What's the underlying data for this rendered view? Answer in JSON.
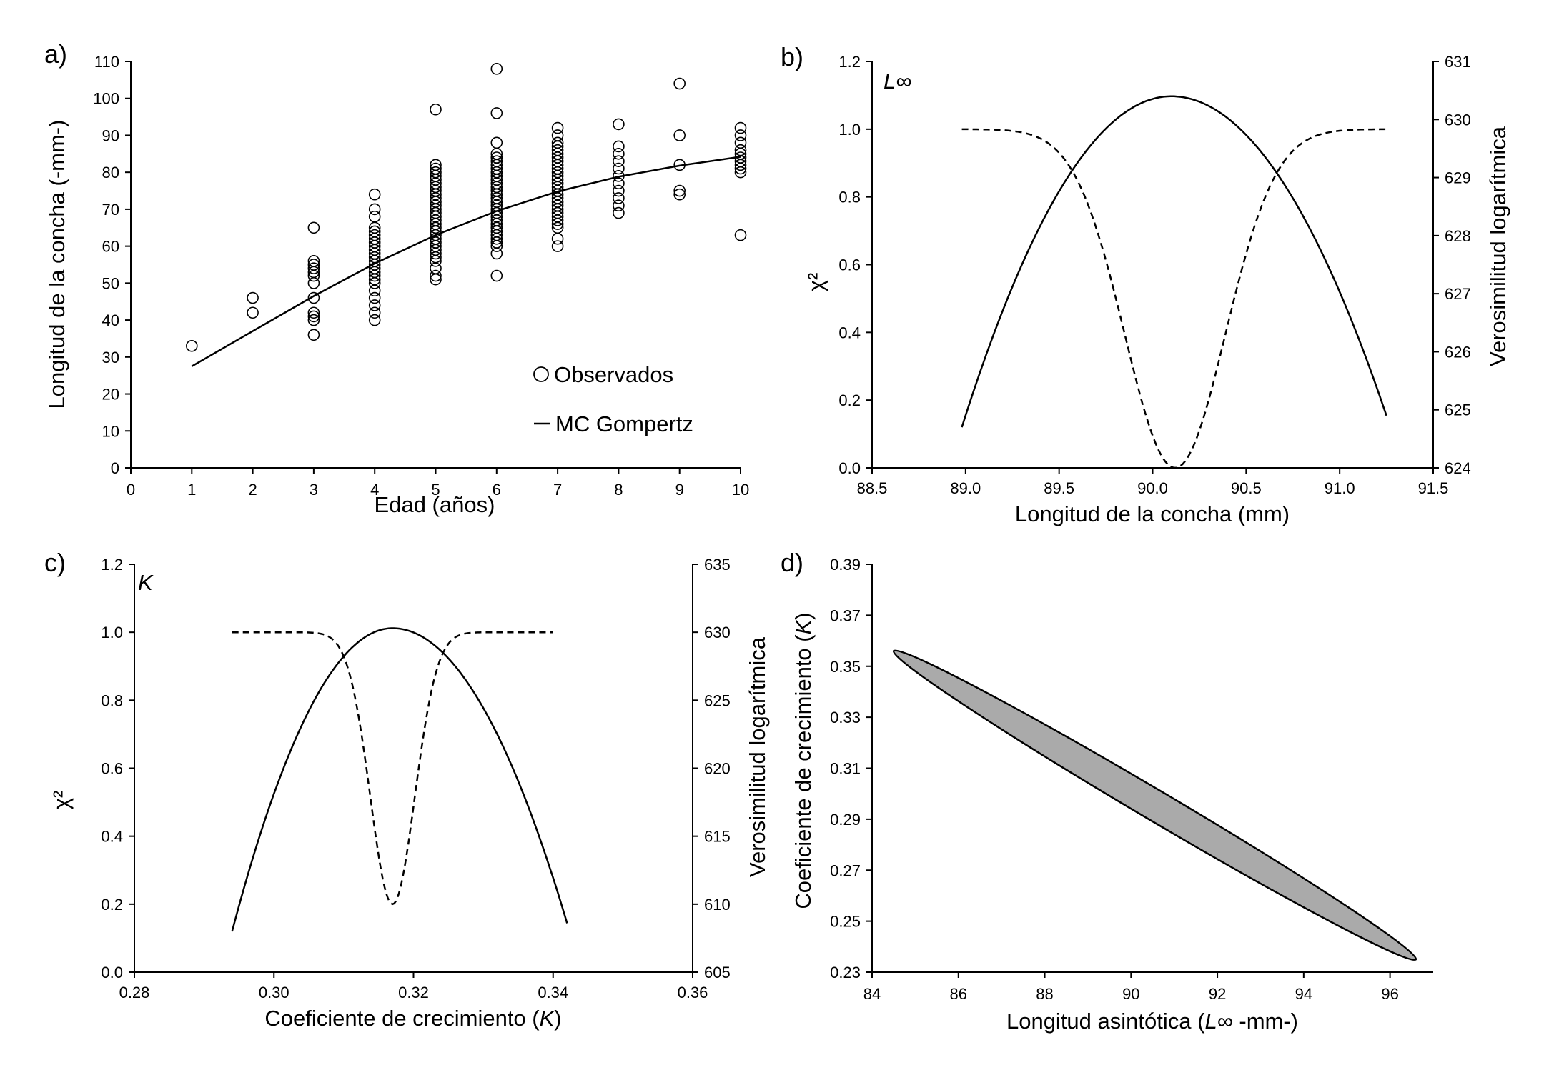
{
  "chart_data": [
    {
      "id": "a",
      "type": "scatter",
      "panel_label": "a)",
      "xlabel": "Edad (años)",
      "ylabel": "Longitud de la concha (-mm-)",
      "xlim": [
        0,
        10
      ],
      "ylim": [
        0,
        110
      ],
      "xticks": [
        0,
        1,
        2,
        3,
        4,
        5,
        6,
        7,
        8,
        9,
        10
      ],
      "yticks": [
        0,
        10,
        20,
        30,
        40,
        50,
        60,
        70,
        80,
        90,
        100,
        110
      ],
      "legend": [
        {
          "name": "Observados",
          "marker": "circle"
        },
        {
          "name": "MC Gompertz",
          "marker": "line"
        }
      ],
      "series": [
        {
          "name": "Observados",
          "points": [
            [
              1,
              33
            ],
            [
              2,
              42
            ],
            [
              2,
              46
            ],
            [
              3,
              36
            ],
            [
              3,
              40
            ],
            [
              3,
              41
            ],
            [
              3,
              42
            ],
            [
              3,
              46
            ],
            [
              3,
              50
            ],
            [
              3,
              52
            ],
            [
              3,
              53
            ],
            [
              3,
              54
            ],
            [
              3,
              55
            ],
            [
              3,
              56
            ],
            [
              3,
              65
            ],
            [
              4,
              40
            ],
            [
              4,
              42
            ],
            [
              4,
              44
            ],
            [
              4,
              46
            ],
            [
              4,
              48
            ],
            [
              4,
              50
            ],
            [
              4,
              51
            ],
            [
              4,
              52
            ],
            [
              4,
              53
            ],
            [
              4,
              54
            ],
            [
              4,
              55
            ],
            [
              4,
              56
            ],
            [
              4,
              57
            ],
            [
              4,
              58
            ],
            [
              4,
              59
            ],
            [
              4,
              60
            ],
            [
              4,
              61
            ],
            [
              4,
              62
            ],
            [
              4,
              63
            ],
            [
              4,
              64
            ],
            [
              4,
              65
            ],
            [
              4,
              68
            ],
            [
              4,
              70
            ],
            [
              4,
              74
            ],
            [
              5,
              51
            ],
            [
              5,
              52
            ],
            [
              5,
              54
            ],
            [
              5,
              56
            ],
            [
              5,
              57
            ],
            [
              5,
              58
            ],
            [
              5,
              59
            ],
            [
              5,
              60
            ],
            [
              5,
              61
            ],
            [
              5,
              62
            ],
            [
              5,
              63
            ],
            [
              5,
              64
            ],
            [
              5,
              65
            ],
            [
              5,
              66
            ],
            [
              5,
              67
            ],
            [
              5,
              68
            ],
            [
              5,
              69
            ],
            [
              5,
              70
            ],
            [
              5,
              71
            ],
            [
              5,
              72
            ],
            [
              5,
              73
            ],
            [
              5,
              74
            ],
            [
              5,
              75
            ],
            [
              5,
              76
            ],
            [
              5,
              77
            ],
            [
              5,
              78
            ],
            [
              5,
              79
            ],
            [
              5,
              80
            ],
            [
              5,
              81
            ],
            [
              5,
              82
            ],
            [
              5,
              97
            ],
            [
              6,
              52
            ],
            [
              6,
              58
            ],
            [
              6,
              60
            ],
            [
              6,
              61
            ],
            [
              6,
              62
            ],
            [
              6,
              63
            ],
            [
              6,
              64
            ],
            [
              6,
              65
            ],
            [
              6,
              66
            ],
            [
              6,
              67
            ],
            [
              6,
              68
            ],
            [
              6,
              69
            ],
            [
              6,
              70
            ],
            [
              6,
              71
            ],
            [
              6,
              72
            ],
            [
              6,
              73
            ],
            [
              6,
              74
            ],
            [
              6,
              75
            ],
            [
              6,
              76
            ],
            [
              6,
              77
            ],
            [
              6,
              78
            ],
            [
              6,
              79
            ],
            [
              6,
              80
            ],
            [
              6,
              81
            ],
            [
              6,
              82
            ],
            [
              6,
              83
            ],
            [
              6,
              84
            ],
            [
              6,
              85
            ],
            [
              6,
              88
            ],
            [
              6,
              96
            ],
            [
              6,
              108
            ],
            [
              7,
              60
            ],
            [
              7,
              62
            ],
            [
              7,
              65
            ],
            [
              7,
              66
            ],
            [
              7,
              67
            ],
            [
              7,
              68
            ],
            [
              7,
              69
            ],
            [
              7,
              70
            ],
            [
              7,
              71
            ],
            [
              7,
              72
            ],
            [
              7,
              73
            ],
            [
              7,
              74
            ],
            [
              7,
              75
            ],
            [
              7,
              76
            ],
            [
              7,
              77
            ],
            [
              7,
              78
            ],
            [
              7,
              79
            ],
            [
              7,
              80
            ],
            [
              7,
              81
            ],
            [
              7,
              82
            ],
            [
              7,
              83
            ],
            [
              7,
              84
            ],
            [
              7,
              85
            ],
            [
              7,
              86
            ],
            [
              7,
              87
            ],
            [
              7,
              88
            ],
            [
              7,
              90
            ],
            [
              7,
              92
            ],
            [
              8,
              69
            ],
            [
              8,
              71
            ],
            [
              8,
              73
            ],
            [
              8,
              75
            ],
            [
              8,
              77
            ],
            [
              8,
              79
            ],
            [
              8,
              81
            ],
            [
              8,
              83
            ],
            [
              8,
              85
            ],
            [
              8,
              87
            ],
            [
              8,
              93
            ],
            [
              9,
              74
            ],
            [
              9,
              75
            ],
            [
              9,
              82
            ],
            [
              9,
              90
            ],
            [
              9,
              104
            ],
            [
              10,
              63
            ],
            [
              10,
              80
            ],
            [
              10,
              81
            ],
            [
              10,
              82
            ],
            [
              10,
              83
            ],
            [
              10,
              84
            ],
            [
              10,
              85
            ],
            [
              10,
              86
            ],
            [
              10,
              88
            ],
            [
              10,
              90
            ],
            [
              10,
              92
            ]
          ]
        },
        {
          "name": "MC Gompertz",
          "points": [
            [
              1,
              27.5
            ],
            [
              2,
              37.0
            ],
            [
              3,
              46.5
            ],
            [
              4,
              55.3
            ],
            [
              5,
              63.0
            ],
            [
              6,
              69.5
            ],
            [
              7,
              74.8
            ],
            [
              8,
              78.8
            ],
            [
              9,
              81.8
            ],
            [
              10,
              84.2
            ]
          ]
        }
      ]
    },
    {
      "id": "b",
      "type": "line",
      "panel_label": "b)",
      "annotation": "L∞",
      "xlabel": "Longitud de la concha (mm)",
      "ylabel": "χ²",
      "y2label": "Verosimilitud logarítmica",
      "xlim": [
        88.5,
        91.5
      ],
      "ylim": [
        0.0,
        1.2
      ],
      "y2lim": [
        624,
        631
      ],
      "xticks": [
        "88.5",
        "89.0",
        "89.5",
        "90.0",
        "90.5",
        "91.0",
        "91.5"
      ],
      "yticks": [
        "0.0",
        "0.2",
        "0.4",
        "0.6",
        "0.8",
        "1.0",
        "1.2"
      ],
      "y2ticks": [
        "624",
        "625",
        "626",
        "627",
        "628",
        "629",
        "630",
        "631"
      ],
      "series": [
        {
          "name": "Verosimilitud logarítmica",
          "axis": "right",
          "style": "solid",
          "x_range": [
            88.98,
            91.25
          ],
          "peak_x": 90.1,
          "peak_y": 630.4,
          "end_left": 624.7,
          "end_right": 624.9
        },
        {
          "name": "χ²",
          "axis": "left",
          "style": "dashed",
          "x_range": [
            88.98,
            91.25
          ],
          "center_x": 90.12,
          "min_y": 0.0,
          "plateau_y": 1.0,
          "width": 0.38
        }
      ]
    },
    {
      "id": "c",
      "type": "line",
      "panel_label": "c)",
      "annotation": "K",
      "xlabel_prefix": "Coeficiente de crecimiento (",
      "xlabel_var": "K",
      "xlabel_suffix": ")",
      "ylabel": "χ²",
      "y2label": "Verosimilitud logarítmica",
      "xlim": [
        0.28,
        0.36
      ],
      "ylim": [
        0.0,
        1.2
      ],
      "y2lim": [
        605,
        635
      ],
      "xticks": [
        "0.28",
        "0.30",
        "0.32",
        "0.34",
        "0.36"
      ],
      "yticks": [
        "0.0",
        "0.2",
        "0.4",
        "0.6",
        "0.8",
        "1.0",
        "1.2"
      ],
      "y2ticks": [
        "605",
        "610",
        "615",
        "620",
        "625",
        "630",
        "635"
      ],
      "series": [
        {
          "name": "Verosimilitud logarítmica",
          "axis": "right",
          "style": "solid",
          "x_range": [
            0.294,
            0.342
          ],
          "peak_x": 0.317,
          "peak_y": 630.3,
          "end_left": 608.0,
          "end_right": 608.6
        },
        {
          "name": "χ²",
          "axis": "left",
          "style": "dashed",
          "x_range": [
            0.294,
            0.34
          ],
          "center_x": 0.317,
          "min_y": 0.2,
          "plateau_y": 1.0,
          "width": 0.0045
        }
      ]
    },
    {
      "id": "d",
      "type": "area",
      "panel_label": "d)",
      "xlabel_prefix": "Longitud asintótica (",
      "xlabel_var": "L∞",
      "xlabel_suffix": " -mm-)",
      "ylabel_prefix": "Coeficiente de crecimiento (",
      "ylabel_var": "K",
      "ylabel_suffix": ")",
      "xlim": [
        84,
        97
      ],
      "ylim": [
        0.23,
        0.39
      ],
      "xticks": [
        "84",
        "86",
        "88",
        "90",
        "92",
        "94",
        "96"
      ],
      "yticks": [
        "0.23",
        "0.25",
        "0.27",
        "0.29",
        "0.31",
        "0.33",
        "0.35",
        "0.37",
        "0.39"
      ],
      "ellipse": {
        "end1": [
          84.5,
          0.356
        ],
        "end2": [
          96.6,
          0.235
        ],
        "half_width_fraction": 0.05,
        "fill": "#aaaaaa"
      }
    }
  ]
}
